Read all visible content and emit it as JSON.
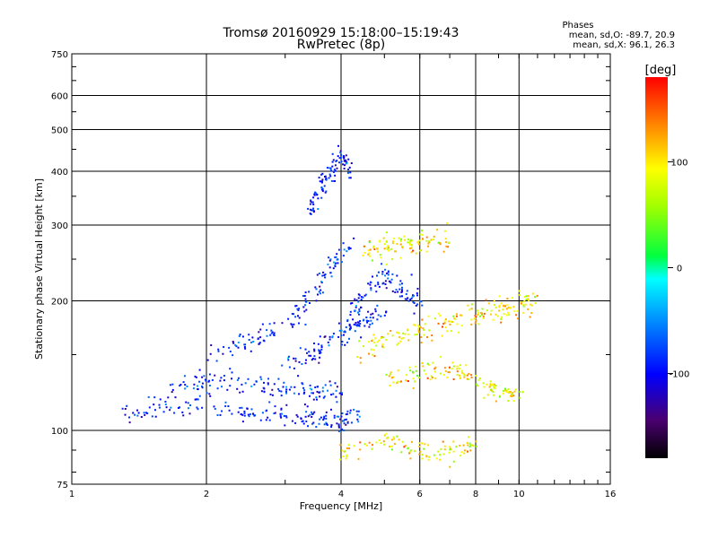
{
  "chart_data": {
    "type": "scatter",
    "title": "Tromsø 20160929 15:18:00–15:19:43",
    "subtitle": "RwPretec (8p)",
    "xlabel": "Frequency [MHz]",
    "ylabel": "Stationary phase Virtual Height [km]",
    "x_scale": "log",
    "y_scale": "log",
    "xlim": [
      1,
      16
    ],
    "ylim": [
      75,
      750
    ],
    "x_ticks": [
      1,
      2,
      4,
      6,
      8,
      10,
      16
    ],
    "x_tick_labels": [
      "1",
      "2",
      "4",
      "6",
      "8",
      "10",
      "16"
    ],
    "y_ticks": [
      75,
      100,
      200,
      300,
      400,
      500,
      600,
      750
    ],
    "y_tick_labels": [
      "75",
      "100",
      "200",
      "300",
      "400",
      "500",
      "600",
      "750"
    ],
    "grid": true,
    "phase_stats": {
      "heading": "Phases",
      "line_o": "mean, sd,O: -89.7, 20.9",
      "line_x": "mean, sd,X:  96.1, 26.3"
    },
    "colorbar": {
      "label": "[deg]",
      "min": -180,
      "max": 180,
      "ticks": [
        100,
        0,
        -100
      ],
      "tick_labels": [
        "100",
        "0",
        "-100"
      ]
    },
    "series": [
      {
        "mode": "O",
        "phase_mean": -89.7,
        "phase_sd": 20.9,
        "traces": [
          {
            "f": [
              1.3,
              1.6,
              2.0,
              2.5,
              3.0,
              3.5,
              4.0,
              4.4
            ],
            "h": [
              112,
              113,
              116,
              110,
              109,
              107,
              106,
              107
            ]
          },
          {
            "f": [
              1.65,
              2.0,
              2.5,
              3.0,
              3.5,
              4.0
            ],
            "h": [
              125,
              130,
              128,
              126,
              124,
              122
            ]
          },
          {
            "f": [
              2.0,
              2.5,
              3.0,
              3.4,
              3.8,
              4.3
            ],
            "h": [
              150,
              160,
              175,
              200,
              240,
              280
            ]
          },
          {
            "f": [
              3.4,
              3.6,
              3.8,
              4.0,
              4.2
            ],
            "h": [
              320,
              360,
              400,
              440,
              400
            ]
          },
          {
            "f": [
              4.0,
              4.4,
              5.0,
              5.5,
              6.0
            ],
            "h": [
              160,
              200,
              230,
              210,
              200
            ]
          },
          {
            "f": [
              3.0,
              3.5,
              4.0,
              4.5,
              5.0
            ],
            "h": [
              140,
              150,
              170,
              180,
              190
            ]
          }
        ]
      },
      {
        "mode": "X",
        "phase_mean": 96.1,
        "phase_sd": 26.3,
        "traces": [
          {
            "f": [
              4.3,
              5.0,
              6.0,
              7.0,
              8.0,
              9.0,
              10.0,
              11.0
            ],
            "h": [
              150,
              160,
              170,
              180,
              185,
              190,
              195,
              200
            ]
          },
          {
            "f": [
              5.0,
              6.0,
              7.0,
              8.0,
              9.0,
              10.0
            ],
            "h": [
              130,
              135,
              140,
              130,
              125,
              120
            ]
          },
          {
            "f": [
              4.5,
              5.0,
              5.5,
              6.0,
              7.0
            ],
            "h": [
              260,
              265,
              270,
              275,
              280
            ]
          },
          {
            "f": [
              4.0,
              5.0,
              6.0,
              7.0,
              8.0
            ],
            "h": [
              90,
              95,
              90,
              88,
              92
            ]
          }
        ]
      }
    ]
  }
}
